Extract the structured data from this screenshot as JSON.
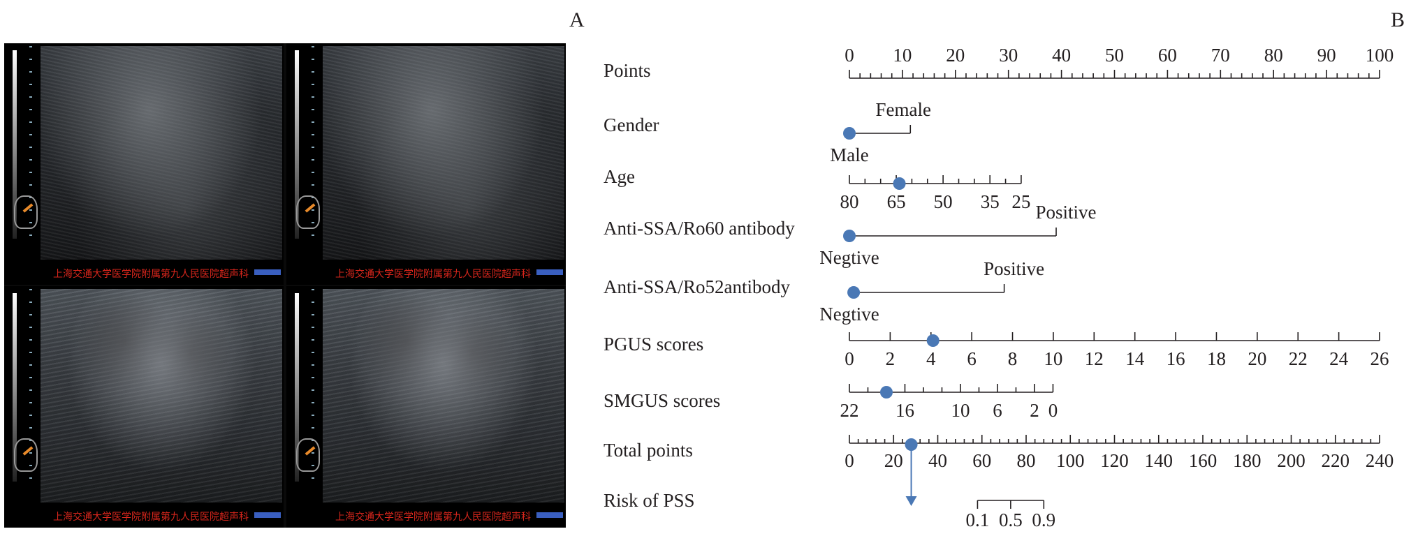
{
  "panels": {
    "a": "A",
    "b": "B"
  },
  "ultrasound": {
    "caption": "上海交通大学医学院附属第九人民医院超声科",
    "tiles": [
      "top-left",
      "top-right",
      "bottom-left",
      "bottom-right"
    ]
  },
  "colors": {
    "marker": "#4a78b5",
    "axis": "#231f20",
    "caption": "#d9261c"
  },
  "chart_data": {
    "type": "nomogram",
    "rows": [
      {
        "name": "Points",
        "ticks": [
          "0",
          "10",
          "20",
          "30",
          "40",
          "50",
          "60",
          "70",
          "80",
          "90",
          "100"
        ],
        "values": [
          0,
          10,
          20,
          30,
          40,
          50,
          60,
          70,
          80,
          90,
          100
        ],
        "range": [
          0,
          100
        ]
      },
      {
        "name": "Gender",
        "levels": [
          {
            "label": "Male",
            "points": 0
          },
          {
            "label": "Female",
            "points": 11.5
          }
        ],
        "marker_points": 0
      },
      {
        "name": "Age",
        "ticks": [
          "80",
          "65",
          "50",
          "35",
          "25"
        ],
        "values": [
          80,
          65,
          50,
          35,
          25
        ],
        "points_range": [
          0,
          32.4
        ],
        "marker_value": 64
      },
      {
        "name": "Anti-SSA/Ro60 antibody",
        "levels": [
          {
            "label": "Negtive",
            "points": 0
          },
          {
            "label": "Positive",
            "points": 39
          }
        ],
        "marker_points": 0
      },
      {
        "name": "Anti-SSA/Ro52antibody",
        "levels": [
          {
            "label": "Negtive",
            "points": 0
          },
          {
            "label": "Positive",
            "points": 29.2
          }
        ],
        "marker_points": 0.8
      },
      {
        "name": "PGUS scores",
        "ticks": [
          "0",
          "2",
          "4",
          "6",
          "8",
          "10",
          "12",
          "14",
          "16",
          "18",
          "20",
          "22",
          "24",
          "26"
        ],
        "values": [
          0,
          2,
          4,
          6,
          8,
          10,
          12,
          14,
          16,
          18,
          20,
          22,
          24,
          26
        ],
        "points_range": [
          0,
          100
        ],
        "marker_value": 4.1
      },
      {
        "name": "SMGUS scores",
        "ticks": [
          "22",
          "16",
          "10",
          "6",
          "2",
          "0"
        ],
        "values": [
          22,
          16,
          10,
          6,
          2,
          0
        ],
        "points_range": [
          0,
          38.4
        ],
        "marker_value": 18
      },
      {
        "name": "Total points",
        "ticks": [
          "0",
          "20",
          "40",
          "60",
          "80",
          "100",
          "120",
          "140",
          "160",
          "180",
          "200",
          "220",
          "240"
        ],
        "values": [
          0,
          20,
          40,
          60,
          80,
          100,
          120,
          140,
          160,
          180,
          200,
          220,
          240
        ],
        "range": [
          0,
          240
        ],
        "marker_value": 28
      },
      {
        "name": "Risk of PSS",
        "ticks": [
          "0.1",
          "0.5",
          "0.9"
        ],
        "values": [
          0.1,
          0.5,
          0.9
        ],
        "total_points_range": [
          58,
          88
        ]
      }
    ]
  }
}
